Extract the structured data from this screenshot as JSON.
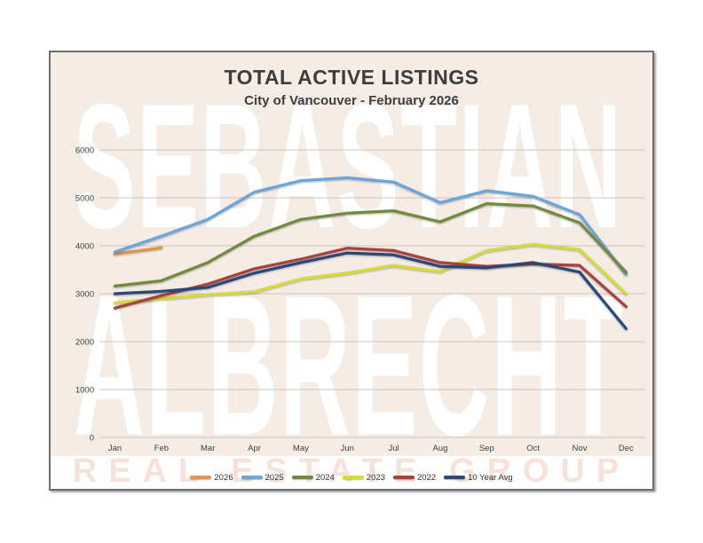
{
  "chart_data": {
    "type": "line",
    "title": "TOTAL ACTIVE LISTINGS",
    "subtitle": "City of Vancouver - February 2026",
    "categories": [
      "Jan",
      "Feb",
      "Mar",
      "Apr",
      "May",
      "Jun",
      "Jul",
      "Aug",
      "Sep",
      "Oct",
      "Nov",
      "Dec"
    ],
    "yticks": [
      0,
      1000,
      2000,
      3000,
      4000,
      5000,
      6000
    ],
    "ylim": [
      0,
      6000
    ],
    "grid": true,
    "legend_position": "bottom",
    "series": [
      {
        "name": "2026",
        "color": "#e59346",
        "values": [
          3830,
          3960,
          null,
          null,
          null,
          null,
          null,
          null,
          null,
          null,
          null,
          null
        ]
      },
      {
        "name": "2025",
        "color": "#6ba5d9",
        "values": [
          3870,
          4200,
          4550,
          5120,
          5360,
          5420,
          5330,
          4900,
          5150,
          5030,
          4650,
          3400
        ]
      },
      {
        "name": "2024",
        "color": "#728a3c",
        "values": [
          3160,
          3270,
          3650,
          4200,
          4550,
          4680,
          4730,
          4500,
          4880,
          4830,
          4480,
          3450
        ]
      },
      {
        "name": "2023",
        "color": "#d7db38",
        "values": [
          2810,
          2900,
          2980,
          3040,
          3310,
          3430,
          3590,
          3460,
          3900,
          4030,
          3920,
          3000
        ]
      },
      {
        "name": "2022",
        "color": "#a8423c",
        "values": [
          2700,
          2960,
          3200,
          3520,
          3720,
          3950,
          3900,
          3650,
          3570,
          3620,
          3590,
          2730
        ]
      },
      {
        "name": "10 Year Avg",
        "color": "#29477b",
        "values": [
          3000,
          3050,
          3130,
          3430,
          3650,
          3850,
          3810,
          3570,
          3540,
          3650,
          3450,
          2270
        ]
      }
    ],
    "watermark": {
      "line1": "SEBASTIAN",
      "line2": "ALBRECHT",
      "line3": "REAL ESTATE GROUP"
    },
    "colors": {
      "panel_background": "#f6ece6",
      "gridline": "#ccc5c0",
      "frame_border": "#6e6e6e",
      "text": "#3d3d3d"
    }
  }
}
